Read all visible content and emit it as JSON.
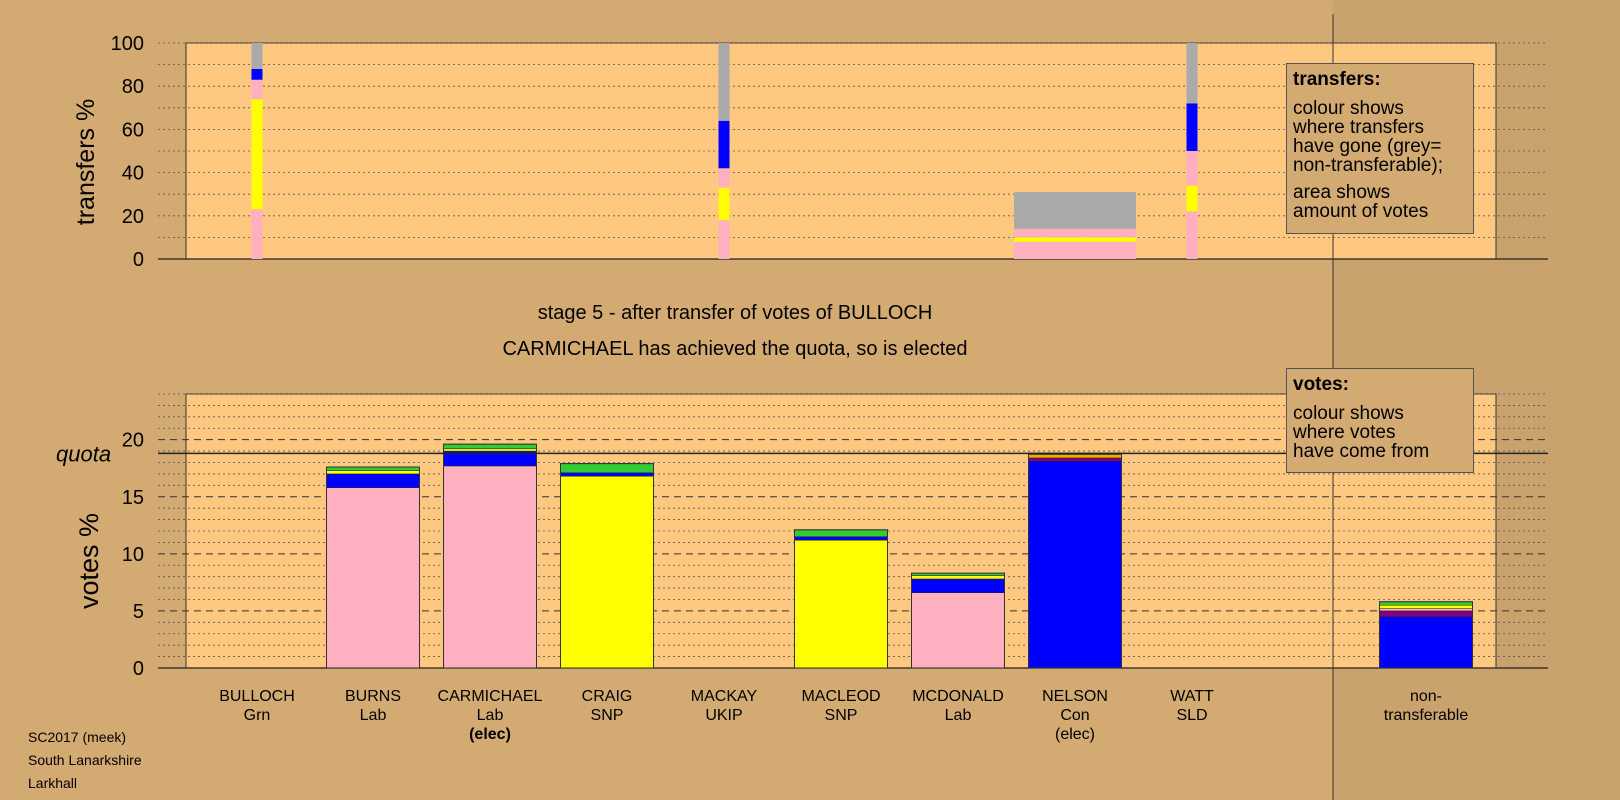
{
  "stage_title": "stage 5 - after transfer of votes of BULLOCH",
  "stage_subtitle": "CARMICHAEL has achieved the quota, so is elected",
  "quota_label": "quota",
  "footer": [
    "SC2017 (meek)",
    "South Lanarkshire",
    "Larkhall"
  ],
  "colors": {
    "Lab": "#ffb0c0",
    "SNP": "#ffff00",
    "Con": "#0000ff",
    "Grn": "#33cc33",
    "SLD": "#ffa500",
    "UKIP": "#800080",
    "nontransferable": "#aaaaaa",
    "background": "#d4aa73",
    "plot_bg": "#ffc880"
  },
  "legend_transfers": {
    "title": "transfers:",
    "para1": [
      "colour shows",
      "where transfers",
      "have gone (grey=",
      "non-transferable);"
    ],
    "para2": [
      "area shows",
      "amount of votes"
    ]
  },
  "legend_votes": {
    "title": "votes:",
    "para1": [
      "colour shows",
      "where votes",
      "have come from"
    ]
  },
  "candidates": [
    {
      "name": "BULLOCH",
      "party": "Grn",
      "elected": ""
    },
    {
      "name": "BURNS",
      "party": "Lab",
      "elected": ""
    },
    {
      "name": "CARMICHAEL",
      "party": "Lab",
      "elected": "(elec)"
    },
    {
      "name": "CRAIG",
      "party": "SNP",
      "elected": ""
    },
    {
      "name": "MACKAY",
      "party": "UKIP",
      "elected": ""
    },
    {
      "name": "MACLEOD",
      "party": "SNP",
      "elected": ""
    },
    {
      "name": "MCDONALD",
      "party": "Lab",
      "elected": ""
    },
    {
      "name": "NELSON",
      "party": "Con",
      "elected": "(elec)"
    },
    {
      "name": "WATT",
      "party": "SLD",
      "elected": ""
    },
    {
      "name": "non-",
      "party": "transferable",
      "elected": ""
    }
  ],
  "chart_data": [
    {
      "type": "bar",
      "title": "",
      "ylabel": "transfers %",
      "ylim": [
        0,
        100
      ],
      "yticks": [
        0,
        20,
        40,
        60,
        80,
        100
      ],
      "columns": [
        {
          "col": 0,
          "width": "thin",
          "segments": [
            {
              "party": "Lab",
              "value": 23
            },
            {
              "party": "SNP",
              "value": 51
            },
            {
              "party": "Lab",
              "value": 9
            },
            {
              "party": "Con",
              "value": 5
            },
            {
              "party": "nontransferable",
              "value": 12
            }
          ]
        },
        {
          "col": 4,
          "width": "thin",
          "segments": [
            {
              "party": "Lab",
              "value": 18
            },
            {
              "party": "SNP",
              "value": 15
            },
            {
              "party": "Lab",
              "value": 9
            },
            {
              "party": "Con",
              "value": 22
            },
            {
              "party": "nontransferable",
              "value": 36
            }
          ]
        },
        {
          "col": 7,
          "width": "wide",
          "segments": [
            {
              "party": "Lab",
              "value": 8
            },
            {
              "party": "SNP",
              "value": 2
            },
            {
              "party": "Lab",
              "value": 4
            },
            {
              "party": "nontransferable",
              "value": 17
            }
          ]
        },
        {
          "col": 8,
          "width": "thin",
          "segments": [
            {
              "party": "Lab",
              "value": 22
            },
            {
              "party": "SNP",
              "value": 12
            },
            {
              "party": "Lab",
              "value": 16
            },
            {
              "party": "Con",
              "value": 22
            },
            {
              "party": "nontransferable",
              "value": 28
            }
          ]
        }
      ]
    },
    {
      "type": "bar",
      "title": "",
      "ylabel": "votes %",
      "ylim": [
        0,
        24
      ],
      "yticks": [
        0,
        5,
        10,
        15,
        20
      ],
      "quota": 18.8,
      "columns": [
        {
          "col": 0,
          "segments": []
        },
        {
          "col": 1,
          "segments": [
            {
              "party": "Lab",
              "value": 15.8
            },
            {
              "party": "Con",
              "value": 1.2
            },
            {
              "party": "SNP",
              "value": 0.3
            },
            {
              "party": "Grn",
              "value": 0.3
            }
          ]
        },
        {
          "col": 2,
          "segments": [
            {
              "party": "Lab",
              "value": 17.7
            },
            {
              "party": "Con",
              "value": 1.3
            },
            {
              "party": "SNP",
              "value": 0.2
            },
            {
              "party": "Grn",
              "value": 0.4
            }
          ]
        },
        {
          "col": 3,
          "segments": [
            {
              "party": "SNP",
              "value": 16.8
            },
            {
              "party": "Con",
              "value": 0.3
            },
            {
              "party": "Grn",
              "value": 0.8
            }
          ]
        },
        {
          "col": 4,
          "segments": []
        },
        {
          "col": 5,
          "segments": [
            {
              "party": "SNP",
              "value": 11.2
            },
            {
              "party": "Con",
              "value": 0.3
            },
            {
              "party": "Grn",
              "value": 0.6
            }
          ]
        },
        {
          "col": 6,
          "segments": [
            {
              "party": "Lab",
              "value": 6.6
            },
            {
              "party": "Con",
              "value": 1.2
            },
            {
              "party": "SNP",
              "value": 0.3
            },
            {
              "party": "Grn",
              "value": 0.2
            }
          ]
        },
        {
          "col": 7,
          "segments": [
            {
              "party": "Con",
              "value": 18.1
            },
            {
              "party": "UKIP",
              "value": 0.3
            },
            {
              "party": "SLD",
              "value": 0.3
            },
            {
              "party": "Grn",
              "value": 0.1
            }
          ]
        },
        {
          "col": 8,
          "segments": []
        },
        {
          "col": 9,
          "segments": [
            {
              "party": "Con",
              "value": 4.5
            },
            {
              "party": "UKIP",
              "value": 0.5
            },
            {
              "party": "Lab",
              "value": 0.2
            },
            {
              "party": "SNP",
              "value": 0.3
            },
            {
              "party": "Grn",
              "value": 0.3
            }
          ]
        }
      ]
    }
  ]
}
